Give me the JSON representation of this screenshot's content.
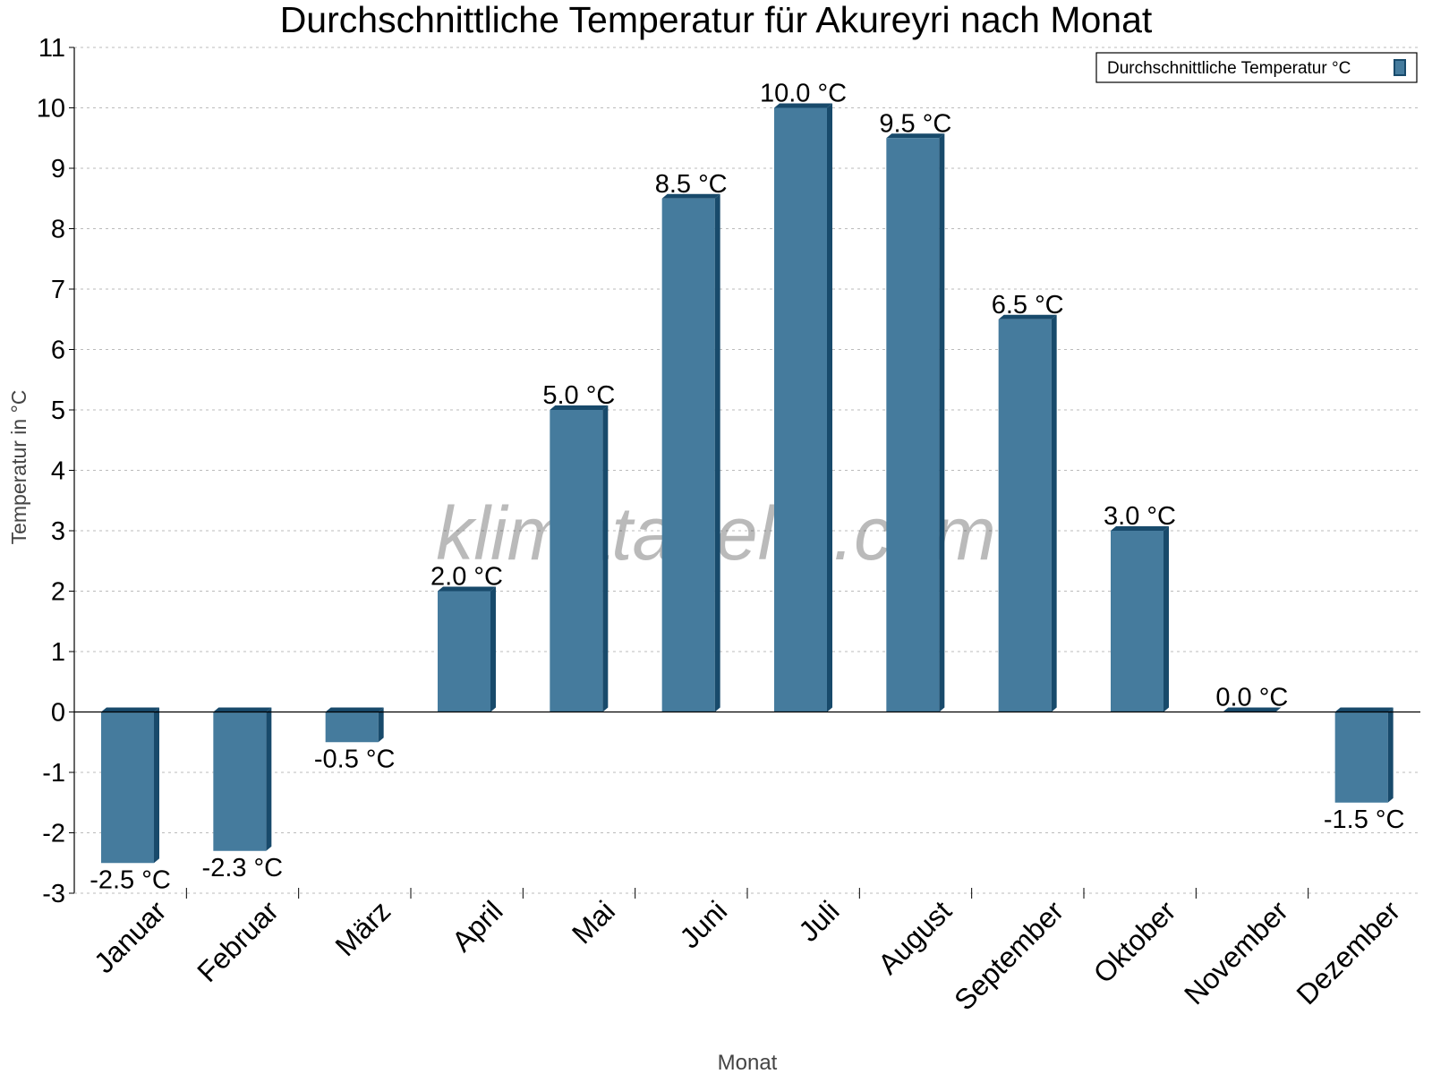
{
  "chart_data": {
    "type": "bar",
    "title": "Durchschnittliche Temperatur für Akureyri nach Monat",
    "xlabel": "Monat",
    "ylabel": "Temperatur in °C",
    "categories": [
      "Januar",
      "Februar",
      "März",
      "April",
      "Mai",
      "Juni",
      "Juli",
      "August",
      "September",
      "Oktober",
      "November",
      "Dezember"
    ],
    "series": [
      {
        "name": "Durchschnittliche Temperatur °C",
        "values": [
          -2.5,
          -2.3,
          -0.5,
          2.0,
          5.0,
          8.5,
          10.0,
          9.5,
          6.5,
          3.0,
          0.0,
          -1.5
        ],
        "color": "#457b9d",
        "edge_color": "#184a6b"
      }
    ],
    "data_labels": [
      "-2.5 °C",
      "-2.3 °C",
      "-0.5 °C",
      "2.0 °C",
      "5.0 °C",
      "8.5 °C",
      "10.0 °C",
      "9.5 °C",
      "6.5 °C",
      "3.0 °C",
      "0.0 °C",
      "-1.5 °C"
    ],
    "ylim": [
      -3,
      11
    ],
    "yticks": [
      -3,
      -2,
      -1,
      0,
      1,
      2,
      3,
      4,
      5,
      6,
      7,
      8,
      9,
      10,
      11
    ],
    "grid": true,
    "legend_position": "top-right",
    "watermark": "klimatabelle.com"
  }
}
